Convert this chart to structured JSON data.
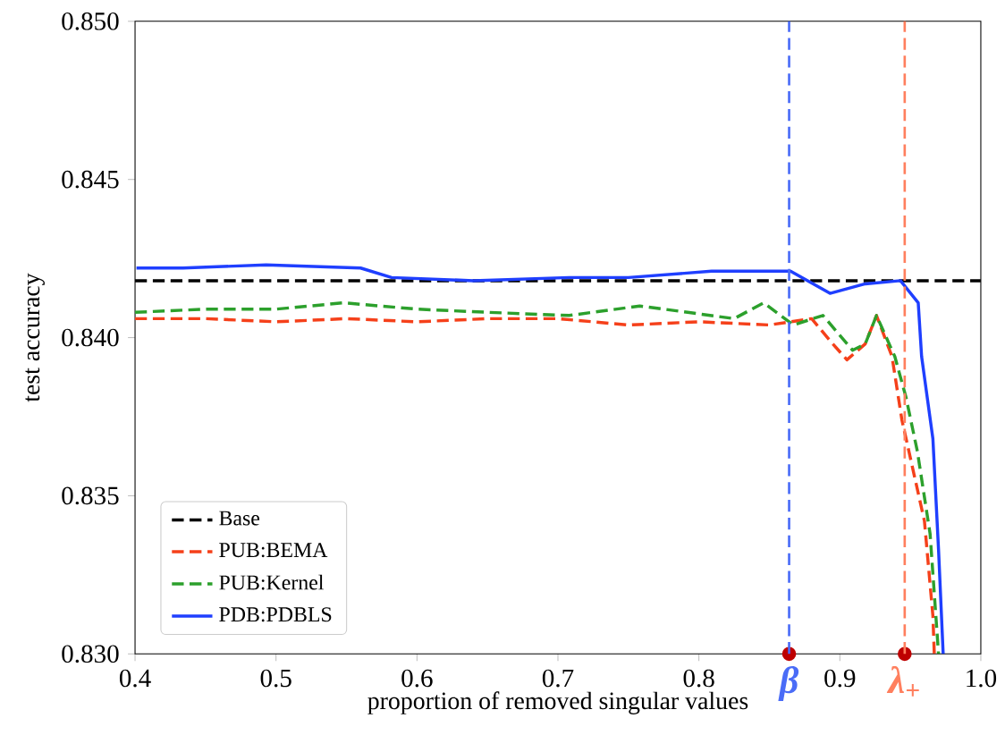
{
  "chart_data": {
    "type": "line",
    "xlabel": "proportion of removed singular values",
    "ylabel": "test accuracy",
    "xlim": [
      0.4,
      1.0
    ],
    "ylim": [
      0.83,
      0.85
    ],
    "xticks": [
      {
        "value": 0.4,
        "label": "0.4"
      },
      {
        "value": 0.5,
        "label": "0.5"
      },
      {
        "value": 0.6,
        "label": "0.6"
      },
      {
        "value": 0.7,
        "label": "0.7"
      },
      {
        "value": 0.8,
        "label": "0.8"
      },
      {
        "value": 0.9,
        "label": "0.9"
      },
      {
        "value": 1.0,
        "label": "1.0"
      }
    ],
    "yticks": [
      {
        "value": 0.83,
        "label": "0.830"
      },
      {
        "value": 0.835,
        "label": "0.835"
      },
      {
        "value": 0.84,
        "label": "0.840"
      },
      {
        "value": 0.845,
        "label": "0.845"
      },
      {
        "value": 0.85,
        "label": "0.850"
      }
    ],
    "legend": "bottom left",
    "series": [
      {
        "name": "Base",
        "color": "#000000",
        "line_style": "dashed",
        "x": [
          0.4,
          1.0
        ],
        "values": [
          0.8418,
          0.8418
        ]
      },
      {
        "name": "PUB:BEMA",
        "color": "#f5401a",
        "line_style": "dashed",
        "x": [
          0.4,
          0.45,
          0.5,
          0.55,
          0.6,
          0.65,
          0.7,
          0.75,
          0.8,
          0.85,
          0.88,
          0.895,
          0.905,
          0.918,
          0.926,
          0.937,
          0.944,
          0.951,
          0.96,
          0.966,
          0.967
        ],
        "values": [
          0.8406,
          0.8406,
          0.8405,
          0.8406,
          0.8405,
          0.8406,
          0.8406,
          0.8404,
          0.8405,
          0.8404,
          0.8406,
          0.8398,
          0.8393,
          0.8398,
          0.8407,
          0.8394,
          0.8374,
          0.836,
          0.8342,
          0.8312,
          0.83
        ]
      },
      {
        "name": "PUB:Kernel",
        "color": "#2ca02c",
        "line_style": "dashed",
        "x": [
          0.4,
          0.45,
          0.5,
          0.548,
          0.6,
          0.65,
          0.708,
          0.758,
          0.792,
          0.825,
          0.846,
          0.867,
          0.888,
          0.909,
          0.918,
          0.926,
          0.939,
          0.947,
          0.955,
          0.964,
          0.97
        ],
        "values": [
          0.8408,
          0.8409,
          0.8409,
          0.8411,
          0.8409,
          0.8408,
          0.8407,
          0.841,
          0.8408,
          0.8406,
          0.8411,
          0.8404,
          0.8407,
          0.8396,
          0.8398,
          0.8407,
          0.8394,
          0.8381,
          0.8364,
          0.8338,
          0.83
        ]
      },
      {
        "type": "scatter",
        "marker": "circle",
        "color": "#be0000",
        "x": [
          0.864,
          0.946
        ],
        "values": [
          0.83,
          0.83
        ]
      },
      {
        "name": "PDB:PDBLS",
        "color": "#1f3fff",
        "line_style": "solid",
        "x": [
          0.401,
          0.434,
          0.493,
          0.56,
          0.582,
          0.64,
          0.708,
          0.75,
          0.809,
          0.865,
          0.893,
          0.918,
          0.943,
          0.9556,
          0.958,
          0.966,
          0.97,
          0.9733
        ],
        "values": [
          0.8422,
          0.8422,
          0.8423,
          0.8422,
          0.8419,
          0.8418,
          0.8419,
          0.8419,
          0.8421,
          0.8421,
          0.8414,
          0.8417,
          0.8418,
          0.8411,
          0.8394,
          0.8368,
          0.8333,
          0.83
        ]
      }
    ],
    "ref_lines": [
      {
        "axis": "x",
        "value": 0.864,
        "label": "β",
        "color": "#4a6cf7",
        "line_style": "dashed"
      },
      {
        "axis": "x",
        "value": 0.946,
        "label": "λ$_{+}$",
        "color": "#ff7f5e",
        "line_style": "dashed"
      }
    ]
  }
}
